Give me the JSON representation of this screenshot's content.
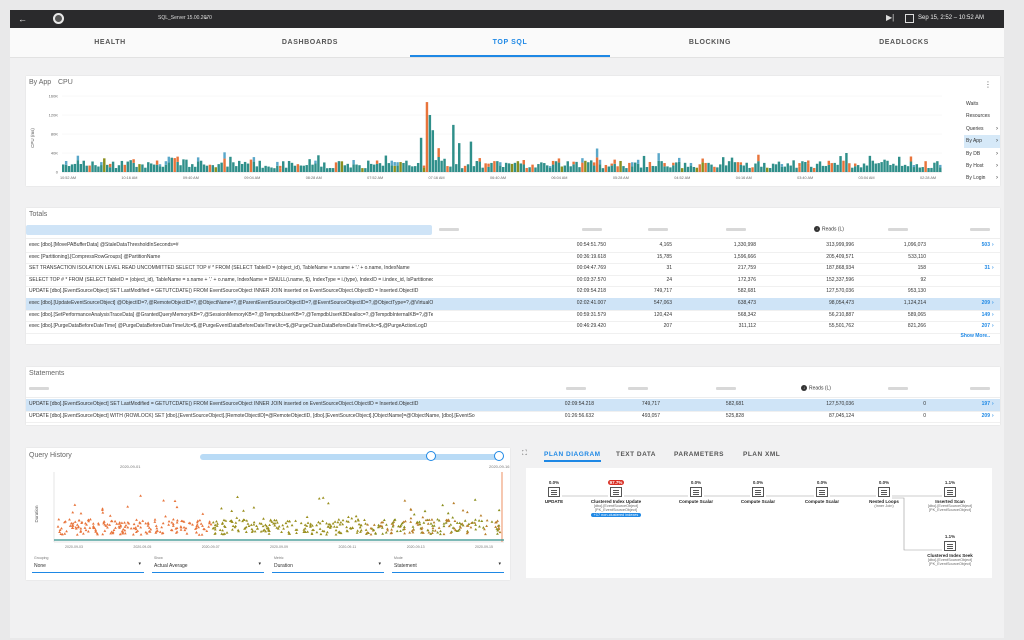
{
  "topbar": {
    "back_icon": "arrow-left-icon",
    "server": "SQL_Server 15.00.2070",
    "datetime": "Sep 15, 2:52 – 10:52 AM"
  },
  "tabs": [
    "HEALTH",
    "DASHBOARDS",
    "TOP SQL",
    "BLOCKING",
    "DEADLOCKS"
  ],
  "active_tab": "TOP SQL",
  "byapp": {
    "title": "By App",
    "metric": "CPU",
    "y_axis_label": "CPU (ms)",
    "y_ticks": [
      "160K",
      "120K",
      "80K",
      "40K",
      "0"
    ],
    "x_ticks": [
      "10:52 AM",
      "10:16 AM",
      "09:40 AM",
      "09:04 AM",
      "08:28 AM",
      "07:52 AM",
      "07:16 AM",
      "06:40 AM",
      "06:04 AM",
      "05:28 AM",
      "04:52 AM",
      "04:16 AM",
      "03:40 AM",
      "03:04 AM",
      "02:28 AM"
    ],
    "side_menu": [
      {
        "label": "Waits",
        "arrow": false,
        "selected": false
      },
      {
        "label": "Resources",
        "arrow": false,
        "selected": false
      },
      {
        "label": "Queries",
        "arrow": true,
        "selected": false
      },
      {
        "label": "By App",
        "arrow": true,
        "selected": true
      },
      {
        "label": "By DB",
        "arrow": true,
        "selected": false
      },
      {
        "label": "By Host",
        "arrow": true,
        "selected": false
      },
      {
        "label": "By Login",
        "arrow": true,
        "selected": false
      }
    ]
  },
  "totals": {
    "title": "Totals",
    "reads_header": "Reads (L)",
    "show_more": "Show More..",
    "rows": [
      {
        "text": "exec [dbo].[MovePABufferData] @StaleDataThresholdInSeconds=#",
        "duration": "00:54:51.750",
        "count": "4,165",
        "cpu": "1,330,998",
        "reads": "313,999,996",
        "writes": "1,096,073",
        "link": "503"
      },
      {
        "text": "exec [Partitioning].[CompressRowGroups] @PartitionName",
        "duration": "00:36:19.618",
        "count": "15,785",
        "cpu": "1,596,666",
        "reads": "205,409,571",
        "writes": "533,110",
        "link": ""
      },
      {
        "text": "SET TRANSACTION ISOLATION LEVEL READ UNCOMMITTED SELECT TOP # * FROM (SELECT TableID = (object_id), TableName = s.name + '.' + o.name, IndexName",
        "duration": "00:04:47.769",
        "count": "31",
        "cpu": "217,759",
        "reads": "187,868,934",
        "writes": "158",
        "link": "31"
      },
      {
        "text": "SELECT TOP # * FROM (SELECT TableID = (object_id), TableName = s.name + '.' + o.name, IndexName = ISNULL(i.name, $), IndexType = i.(type), IndexID = i.index_id, IsPartitioned = CONV",
        "duration": "00:03:37.570",
        "count": "24",
        "cpu": "172,376",
        "reads": "152,337,596",
        "writes": "92",
        "link": ""
      },
      {
        "text": "UPDATE [dbo].[EventSourceObject] SET LastModified = GETUTCDATE() FROM EventSourceObject INNER JOIN inserted on EventSourceObject.ObjectID = Inserted.ObjectID",
        "duration": "02:09:54.218",
        "count": "749,717",
        "cpu": "582,681",
        "reads": "127,570,036",
        "writes": "953,130",
        "link": ""
      },
      {
        "text": "exec [dbo].[UpdateEventSourceObject] @ObjectID=?,@RemoteObjectID=?,@ObjectName=?,@ParentEventSourceObjectID=?,@EventSourceObjectID=?,@ObjectType=?,@VirtualObjectTypeID=?",
        "duration": "02:02:41.007",
        "count": "547,063",
        "cpu": "638,473",
        "reads": "98,054,473",
        "writes": "1,124,214",
        "link": "209"
      },
      {
        "text": "exec [dbo].[SetPerformanceAnalysisTraceData] @GrantedQueryMemoryKB=?,@SessionMemoryKB=?,@TempdbUserKB=?,@TempdbUserKBDealloc=?,@TempdbInternalKB=?,@Tempdbinte",
        "duration": "00:59:31.579",
        "count": "120,424",
        "cpu": "568,342",
        "reads": "56,210,887",
        "writes": "589,065",
        "link": "149"
      },
      {
        "text": "exec [dbo].[PurgeDataBeforeDateTime] @PurgeDataBeforeDateTimeUtc=$,@PurgeEventDataBeforeDateTimeUtc=$,@PurgeChainDataBeforeDateTimeUtc=$,@PurgeActionLogD",
        "duration": "00:46:29.420",
        "count": "207",
        "cpu": "311,112",
        "reads": "55,501,762",
        "writes": "821,266",
        "link": "207"
      }
    ]
  },
  "statements": {
    "title": "Statements",
    "reads_header": "Reads (L)",
    "rows": [
      {
        "text": "UPDATE [dbo].[EventSourceObject] SET LastModified = GETUTCDATE() FROM EventSourceObject INNER JOIN inserted on EventSourceObject.ObjectID = Inserted.ObjectID",
        "duration": "02:09:54.218",
        "count": "749,717",
        "cpu": "582,681",
        "reads": "127,570,036",
        "writes": "0",
        "link": "197"
      },
      {
        "text": "UPDATE [dbo].[EventSourceObject] WITH (ROWLOCK) SET [dbo].[EventSourceObject].[RemoteObjectID]=@RemoteObjectID, [dbo].[EventSourceObject].[ObjectName]=@ObjectName, [dbo].[EventSo",
        "duration": "01:26:56.632",
        "count": "493,057",
        "cpu": "525,828",
        "reads": "87,045,124",
        "writes": "0",
        "link": "209"
      }
    ]
  },
  "query_history": {
    "title": "Query History",
    "slider_start": "2020-09-01",
    "slider_end": "2020-09-16",
    "y_label": "Duration",
    "x_ticks": [
      "2020-09-03",
      "2020-09-05",
      "2020-09-07",
      "2020-09-09",
      "2020-09-11",
      "2020-09-13",
      "2020-09-15"
    ],
    "dropdowns": [
      {
        "label": "Grouping",
        "value": "None"
      },
      {
        "label": "Show",
        "value": "Actual Average"
      },
      {
        "label": "Metric",
        "value": "Duration"
      },
      {
        "label": "Mode",
        "value": "Statement"
      }
    ]
  },
  "plan": {
    "tabs": [
      "PLAN DIAGRAM",
      "TEXT DATA",
      "PARAMETERS",
      "PLAN XML"
    ],
    "active_tab": "PLAN DIAGRAM",
    "nodes": [
      {
        "pct": "0.0%",
        "name": "UPDATE",
        "sub1": "",
        "sub2": "",
        "extra": ""
      },
      {
        "pct": "97.7%",
        "name": "Clustered Index Update",
        "sub1": "[dbo].[EventSourceObject]",
        "sub2": "[PK_EventSourceObject]",
        "extra": "+17 non-clustered indexes"
      },
      {
        "pct": "0.0%",
        "name": "Compute Scalar",
        "sub1": "",
        "sub2": "",
        "extra": ""
      },
      {
        "pct": "0.0%",
        "name": "Compute Scalar",
        "sub1": "",
        "sub2": "",
        "extra": ""
      },
      {
        "pct": "0.0%",
        "name": "Compute Scalar",
        "sub1": "",
        "sub2": "",
        "extra": ""
      },
      {
        "pct": "0.0%",
        "name": "Nested Loops",
        "sub1": "(Inner Join)",
        "sub2": "",
        "extra": ""
      },
      {
        "pct": "1.1%",
        "name": "Inserted Scan",
        "sub1": "[dbo].[EventSourceObject]",
        "sub2": "[PK_EventSourceObject]",
        "extra": ""
      },
      {
        "pct": "1.1%",
        "name": "Clustered Index Seek",
        "sub1": "[dbo].[EventSourceObject]",
        "sub2": "[PK_EventSourceObject]",
        "extra": ""
      }
    ]
  },
  "colors": {
    "accent": "#1e88e5",
    "teal": "#2f8f8a",
    "orange": "#e8743b",
    "olive": "#8a8f1e",
    "selected_row": "#cfe4f7"
  }
}
